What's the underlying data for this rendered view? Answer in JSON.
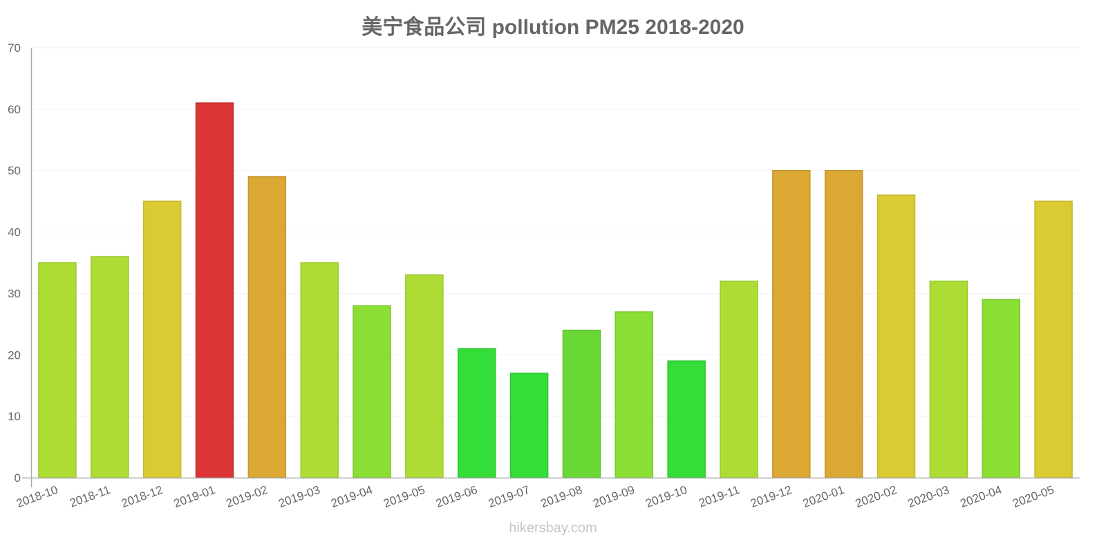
{
  "title": "美宁食品公司 pollution PM25 2018-2020",
  "watermark": "hikersbay.com",
  "chart_data": {
    "type": "bar",
    "title": "美宁食品公司 pollution PM25 2018-2020",
    "xlabel": "",
    "ylabel": "",
    "ylim": [
      0,
      70
    ],
    "yticks": [
      0,
      10,
      20,
      30,
      40,
      50,
      60,
      70
    ],
    "grid": true,
    "legend": "none",
    "categories": [
      "2018-10",
      "2018-11",
      "2018-12",
      "2019-01",
      "2019-02",
      "2019-03",
      "2019-04",
      "2019-05",
      "2019-06",
      "2019-07",
      "2019-08",
      "2019-09",
      "2019-10",
      "2019-11",
      "2019-12",
      "2020-01",
      "2020-02",
      "2020-03",
      "2020-04",
      "2020-05"
    ],
    "values": [
      35,
      36,
      45,
      61,
      49,
      35,
      28,
      33,
      21,
      17,
      24,
      27,
      19,
      32,
      50,
      50,
      46,
      32,
      29,
      45
    ],
    "colors": [
      "#addd34",
      "#addd34",
      "#dacb33",
      "#db3535",
      "#dba834",
      "#addd34",
      "#8ade34",
      "#addd34",
      "#34dd37",
      "#34dd37",
      "#69d734",
      "#8ade34",
      "#34dd37",
      "#addd34",
      "#dba834",
      "#dba834",
      "#dacb33",
      "#addd34",
      "#8ade34",
      "#dacb33"
    ]
  }
}
